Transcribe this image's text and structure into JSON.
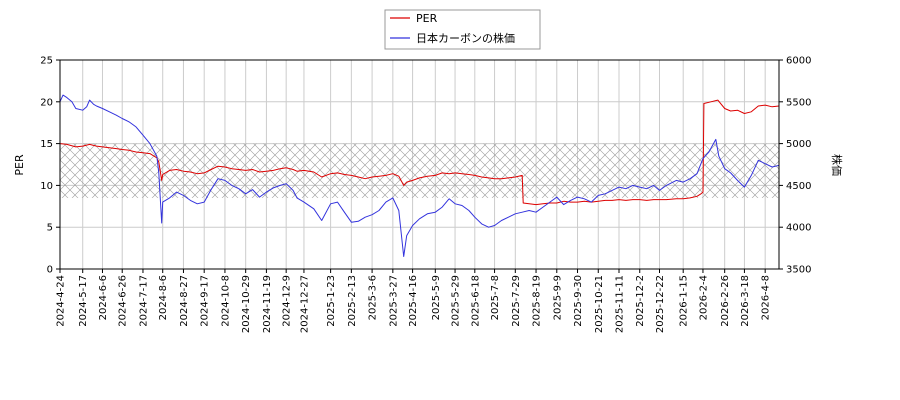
{
  "chart_data": {
    "type": "line",
    "title": "",
    "xlabel": "",
    "ylabel": "PER",
    "y2label": "株価",
    "ylim": [
      0,
      25
    ],
    "y2lim": [
      3500,
      6000
    ],
    "yticks": [
      0,
      5,
      10,
      15,
      20,
      25
    ],
    "y2ticks": [
      3500,
      4000,
      4500,
      5000,
      5500,
      6000
    ],
    "xlim": [
      "2024-04-24",
      "2026-04-22"
    ],
    "xticks": [
      "2024-4-24",
      "2024-5-17",
      "2024-6-6",
      "2024-6-26",
      "2024-7-17",
      "2024-8-6",
      "2024-8-27",
      "2024-9-17",
      "2024-10-8",
      "2024-10-29",
      "2024-11-19",
      "2024-12-9",
      "2024-12-27",
      "2025-1-23",
      "2025-2-13",
      "2025-3-6",
      "2025-3-27",
      "2025-4-16",
      "2025-5-9",
      "2025-5-29",
      "2025-6-18",
      "2025-7-8",
      "2025-7-29",
      "2025-8-19",
      "2025-9-9",
      "2025-9-30",
      "2025-10-21",
      "2025-11-11",
      "2025-12-2",
      "2025-12-22",
      "2026-1-15",
      "2026-2-4",
      "2026-2-26",
      "2026-3-18",
      "2026-4-8"
    ],
    "grid": true,
    "shaded_band": {
      "from": 8.5,
      "to": 15,
      "pattern": "crosshatch"
    },
    "legend": {
      "placement": "top-center"
    },
    "series": [
      {
        "name": "PER",
        "axis": "left",
        "color": "#dd0000",
        "points": [
          [
            "2024-04-24",
            15.0
          ],
          [
            "2024-05-01",
            14.9
          ],
          [
            "2024-05-10",
            14.6
          ],
          [
            "2024-05-17",
            14.7
          ],
          [
            "2024-05-24",
            14.9
          ],
          [
            "2024-05-31",
            14.7
          ],
          [
            "2024-06-06",
            14.6
          ],
          [
            "2024-06-13",
            14.5
          ],
          [
            "2024-06-20",
            14.4
          ],
          [
            "2024-06-26",
            14.3
          ],
          [
            "2024-07-03",
            14.2
          ],
          [
            "2024-07-10",
            14.0
          ],
          [
            "2024-07-17",
            13.9
          ],
          [
            "2024-07-24",
            13.8
          ],
          [
            "2024-07-31",
            13.3
          ],
          [
            "2024-08-02",
            12.8
          ],
          [
            "2024-08-05",
            10.6
          ],
          [
            "2024-08-06",
            11.3
          ],
          [
            "2024-08-13",
            11.8
          ],
          [
            "2024-08-20",
            11.9
          ],
          [
            "2024-08-27",
            11.7
          ],
          [
            "2024-09-03",
            11.6
          ],
          [
            "2024-09-10",
            11.4
          ],
          [
            "2024-09-17",
            11.5
          ],
          [
            "2024-09-24",
            11.9
          ],
          [
            "2024-10-01",
            12.3
          ],
          [
            "2024-10-08",
            12.2
          ],
          [
            "2024-10-15",
            12.0
          ],
          [
            "2024-10-22",
            11.9
          ],
          [
            "2024-10-29",
            11.8
          ],
          [
            "2024-11-05",
            11.9
          ],
          [
            "2024-11-12",
            11.6
          ],
          [
            "2024-11-19",
            11.7
          ],
          [
            "2024-11-26",
            11.8
          ],
          [
            "2024-12-03",
            12.0
          ],
          [
            "2024-12-09",
            12.1
          ],
          [
            "2024-12-16",
            11.9
          ],
          [
            "2024-12-20",
            11.7
          ],
          [
            "2024-12-27",
            11.8
          ],
          [
            "2025-01-06",
            11.6
          ],
          [
            "2025-01-14",
            11.0
          ],
          [
            "2025-01-23",
            11.4
          ],
          [
            "2025-01-30",
            11.5
          ],
          [
            "2025-02-06",
            11.3
          ],
          [
            "2025-02-13",
            11.2
          ],
          [
            "2025-02-20",
            11.0
          ],
          [
            "2025-02-27",
            10.8
          ],
          [
            "2025-03-06",
            11.0
          ],
          [
            "2025-03-13",
            11.1
          ],
          [
            "2025-03-20",
            11.2
          ],
          [
            "2025-03-27",
            11.4
          ],
          [
            "2025-04-02",
            11.1
          ],
          [
            "2025-04-07",
            10.0
          ],
          [
            "2025-04-10",
            10.4
          ],
          [
            "2025-04-16",
            10.6
          ],
          [
            "2025-04-23",
            10.9
          ],
          [
            "2025-05-01",
            11.1
          ],
          [
            "2025-05-09",
            11.2
          ],
          [
            "2025-05-16",
            11.5
          ],
          [
            "2025-05-23",
            11.4
          ],
          [
            "2025-05-29",
            11.5
          ],
          [
            "2025-06-05",
            11.4
          ],
          [
            "2025-06-12",
            11.3
          ],
          [
            "2025-06-18",
            11.2
          ],
          [
            "2025-06-25",
            11.0
          ],
          [
            "2025-07-02",
            10.9
          ],
          [
            "2025-07-08",
            10.8
          ],
          [
            "2025-07-15",
            10.8
          ],
          [
            "2025-07-22",
            10.9
          ],
          [
            "2025-07-29",
            11.0
          ],
          [
            "2025-08-05",
            11.2
          ],
          [
            "2025-08-06",
            7.9
          ],
          [
            "2025-08-12",
            7.8
          ],
          [
            "2025-08-19",
            7.7
          ],
          [
            "2025-08-26",
            7.8
          ],
          [
            "2025-09-02",
            7.9
          ],
          [
            "2025-09-09",
            7.9
          ],
          [
            "2025-09-16",
            8.1
          ],
          [
            "2025-09-23",
            8.0
          ],
          [
            "2025-09-30",
            8.0
          ],
          [
            "2025-10-07",
            8.1
          ],
          [
            "2025-10-14",
            8.0
          ],
          [
            "2025-10-21",
            8.1
          ],
          [
            "2025-10-28",
            8.2
          ],
          [
            "2025-11-04",
            8.2
          ],
          [
            "2025-11-11",
            8.3
          ],
          [
            "2025-11-18",
            8.2
          ],
          [
            "2025-11-25",
            8.3
          ],
          [
            "2025-12-02",
            8.3
          ],
          [
            "2025-12-09",
            8.2
          ],
          [
            "2025-12-16",
            8.3
          ],
          [
            "2025-12-22",
            8.3
          ],
          [
            "2025-12-29",
            8.3
          ],
          [
            "2026-01-08",
            8.4
          ],
          [
            "2026-01-15",
            8.4
          ],
          [
            "2026-01-22",
            8.5
          ],
          [
            "2026-01-29",
            8.7
          ],
          [
            "2026-02-02",
            9.0
          ],
          [
            "2026-02-04",
            9.2
          ],
          [
            "2026-02-05",
            19.8
          ],
          [
            "2026-02-12",
            20.0
          ],
          [
            "2026-02-19",
            20.2
          ],
          [
            "2026-02-26",
            19.2
          ],
          [
            "2026-03-04",
            18.9
          ],
          [
            "2026-03-11",
            19.0
          ],
          [
            "2026-03-18",
            18.6
          ],
          [
            "2026-03-25",
            18.8
          ],
          [
            "2026-04-01",
            19.5
          ],
          [
            "2026-04-08",
            19.6
          ],
          [
            "2026-04-15",
            19.4
          ],
          [
            "2026-04-22",
            19.5
          ]
        ]
      },
      {
        "name": "日本カーボンの株価",
        "axis": "right",
        "color": "#3333dd",
        "points": [
          [
            "2024-04-24",
            5500
          ],
          [
            "2024-04-27",
            5580
          ],
          [
            "2024-05-01",
            5550
          ],
          [
            "2024-05-06",
            5500
          ],
          [
            "2024-05-10",
            5420
          ],
          [
            "2024-05-17",
            5400
          ],
          [
            "2024-05-21",
            5440
          ],
          [
            "2024-05-24",
            5520
          ],
          [
            "2024-05-28",
            5470
          ],
          [
            "2024-05-31",
            5450
          ],
          [
            "2024-06-06",
            5420
          ],
          [
            "2024-06-13",
            5380
          ],
          [
            "2024-06-20",
            5340
          ],
          [
            "2024-06-26",
            5300
          ],
          [
            "2024-07-03",
            5260
          ],
          [
            "2024-07-10",
            5200
          ],
          [
            "2024-07-17",
            5100
          ],
          [
            "2024-07-24",
            5000
          ],
          [
            "2024-07-31",
            4850
          ],
          [
            "2024-08-02",
            4650
          ],
          [
            "2024-08-05",
            4050
          ],
          [
            "2024-08-06",
            4300
          ],
          [
            "2024-08-13",
            4350
          ],
          [
            "2024-08-20",
            4420
          ],
          [
            "2024-08-27",
            4380
          ],
          [
            "2024-09-03",
            4320
          ],
          [
            "2024-09-10",
            4280
          ],
          [
            "2024-09-17",
            4300
          ],
          [
            "2024-09-24",
            4450
          ],
          [
            "2024-10-01",
            4580
          ],
          [
            "2024-10-08",
            4560
          ],
          [
            "2024-10-15",
            4500
          ],
          [
            "2024-10-22",
            4460
          ],
          [
            "2024-10-29",
            4400
          ],
          [
            "2024-11-05",
            4450
          ],
          [
            "2024-11-12",
            4360
          ],
          [
            "2024-11-19",
            4420
          ],
          [
            "2024-11-26",
            4470
          ],
          [
            "2024-12-03",
            4500
          ],
          [
            "2024-12-09",
            4520
          ],
          [
            "2024-12-16",
            4440
          ],
          [
            "2024-12-20",
            4350
          ],
          [
            "2024-12-27",
            4300
          ],
          [
            "2025-01-06",
            4220
          ],
          [
            "2025-01-14",
            4080
          ],
          [
            "2025-01-23",
            4280
          ],
          [
            "2025-01-30",
            4300
          ],
          [
            "2025-02-06",
            4180
          ],
          [
            "2025-02-13",
            4060
          ],
          [
            "2025-02-20",
            4070
          ],
          [
            "2025-02-27",
            4120
          ],
          [
            "2025-03-06",
            4150
          ],
          [
            "2025-03-13",
            4200
          ],
          [
            "2025-03-20",
            4300
          ],
          [
            "2025-03-27",
            4350
          ],
          [
            "2025-04-02",
            4200
          ],
          [
            "2025-04-07",
            3650
          ],
          [
            "2025-04-10",
            3900
          ],
          [
            "2025-04-16",
            4020
          ],
          [
            "2025-04-23",
            4100
          ],
          [
            "2025-05-01",
            4160
          ],
          [
            "2025-05-09",
            4180
          ],
          [
            "2025-05-16",
            4240
          ],
          [
            "2025-05-23",
            4340
          ],
          [
            "2025-05-29",
            4280
          ],
          [
            "2025-06-05",
            4260
          ],
          [
            "2025-06-12",
            4200
          ],
          [
            "2025-06-18",
            4120
          ],
          [
            "2025-06-25",
            4040
          ],
          [
            "2025-07-02",
            4000
          ],
          [
            "2025-07-08",
            4020
          ],
          [
            "2025-07-15",
            4080
          ],
          [
            "2025-07-22",
            4120
          ],
          [
            "2025-07-29",
            4160
          ],
          [
            "2025-08-05",
            4180
          ],
          [
            "2025-08-12",
            4200
          ],
          [
            "2025-08-19",
            4180
          ],
          [
            "2025-08-26",
            4240
          ],
          [
            "2025-09-02",
            4300
          ],
          [
            "2025-09-09",
            4360
          ],
          [
            "2025-09-16",
            4270
          ],
          [
            "2025-09-23",
            4320
          ],
          [
            "2025-09-30",
            4360
          ],
          [
            "2025-10-07",
            4340
          ],
          [
            "2025-10-14",
            4300
          ],
          [
            "2025-10-21",
            4380
          ],
          [
            "2025-10-28",
            4400
          ],
          [
            "2025-11-04",
            4440
          ],
          [
            "2025-11-11",
            4480
          ],
          [
            "2025-11-18",
            4460
          ],
          [
            "2025-11-25",
            4500
          ],
          [
            "2025-12-02",
            4480
          ],
          [
            "2025-12-09",
            4460
          ],
          [
            "2025-12-16",
            4500
          ],
          [
            "2025-12-22",
            4440
          ],
          [
            "2025-12-29",
            4500
          ],
          [
            "2026-01-08",
            4560
          ],
          [
            "2026-01-15",
            4540
          ],
          [
            "2026-01-22",
            4580
          ],
          [
            "2026-01-29",
            4640
          ],
          [
            "2026-02-04",
            4820
          ],
          [
            "2026-02-10",
            4900
          ],
          [
            "2026-02-17",
            5050
          ],
          [
            "2026-02-20",
            4850
          ],
          [
            "2026-02-26",
            4700
          ],
          [
            "2026-03-04",
            4650
          ],
          [
            "2026-03-11",
            4560
          ],
          [
            "2026-03-18",
            4480
          ],
          [
            "2026-03-25",
            4620
          ],
          [
            "2026-04-01",
            4800
          ],
          [
            "2026-04-08",
            4760
          ],
          [
            "2026-04-15",
            4720
          ],
          [
            "2026-04-22",
            4740
          ]
        ]
      }
    ]
  }
}
